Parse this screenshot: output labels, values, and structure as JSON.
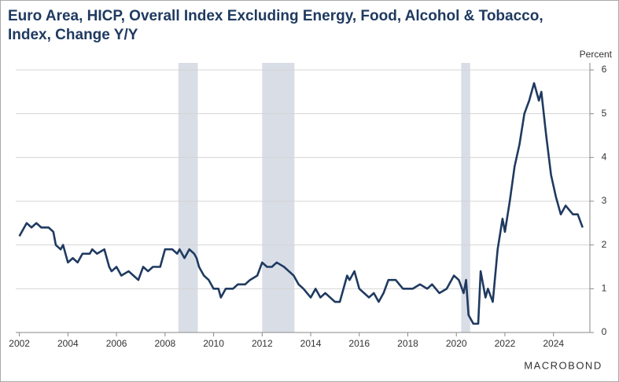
{
  "chart_data": {
    "type": "line",
    "title": [
      "Euro Area, HICP, Overall Index Excluding Energy, Food, Alcohol & Tobacco,",
      "Index, Change Y/Y"
    ],
    "y_axis_label": "Percent",
    "logo": "MACROBOND",
    "color": "#1f3a60",
    "shade_color": "#d9dde6",
    "grid": true,
    "y_axis_side": "right",
    "xlim": [
      2001.85,
      2025.5
    ],
    "xticks": [
      2002,
      2004,
      2006,
      2008,
      2010,
      2012,
      2014,
      2016,
      2018,
      2020,
      2022,
      2024
    ],
    "ylim": [
      0,
      6
    ],
    "yticks": [
      0,
      1,
      2,
      3,
      4,
      5,
      6
    ],
    "shaded_periods": [
      [
        2008.55,
        2009.35
      ],
      [
        2012.0,
        2013.33
      ],
      [
        2020.2,
        2020.57
      ]
    ],
    "x": [
      2002.0,
      2002.2,
      2002.3,
      2002.5,
      2002.7,
      2002.9,
      2003.2,
      2003.4,
      2003.5,
      2003.7,
      2003.8,
      2004.0,
      2004.2,
      2004.4,
      2004.6,
      2004.9,
      2005.0,
      2005.2,
      2005.5,
      2005.7,
      2005.8,
      2006.0,
      2006.2,
      2006.5,
      2006.7,
      2006.9,
      2007.1,
      2007.3,
      2007.5,
      2007.8,
      2008.0,
      2008.3,
      2008.5,
      2008.6,
      2008.8,
      2009.0,
      2009.2,
      2009.3,
      2009.4,
      2009.6,
      2009.8,
      2010.0,
      2010.2,
      2010.3,
      2010.5,
      2010.8,
      2011.0,
      2011.3,
      2011.5,
      2011.8,
      2012.0,
      2012.2,
      2012.4,
      2012.6,
      2012.9,
      2013.1,
      2013.3,
      2013.5,
      2013.7,
      2014.0,
      2014.2,
      2014.4,
      2014.6,
      2014.8,
      2015.0,
      2015.2,
      2015.5,
      2015.6,
      2015.8,
      2016.0,
      2016.2,
      2016.4,
      2016.6,
      2016.8,
      2017.0,
      2017.2,
      2017.5,
      2017.8,
      2018.0,
      2018.2,
      2018.5,
      2018.8,
      2019.0,
      2019.3,
      2019.6,
      2019.9,
      2020.1,
      2020.3,
      2020.4,
      2020.5,
      2020.7,
      2020.9,
      2021.0,
      2021.2,
      2021.3,
      2021.5,
      2021.7,
      2021.9,
      2022.0,
      2022.2,
      2022.4,
      2022.6,
      2022.8,
      2023.0,
      2023.2,
      2023.4,
      2023.5,
      2023.7,
      2023.9,
      2024.1,
      2024.3,
      2024.5,
      2024.8,
      2025.0,
      2025.2
    ],
    "values": [
      2.2,
      2.4,
      2.5,
      2.4,
      2.5,
      2.4,
      2.4,
      2.3,
      2.0,
      1.9,
      2.0,
      1.6,
      1.7,
      1.6,
      1.8,
      1.8,
      1.9,
      1.8,
      1.9,
      1.5,
      1.4,
      1.5,
      1.3,
      1.4,
      1.3,
      1.2,
      1.5,
      1.4,
      1.5,
      1.5,
      1.9,
      1.9,
      1.8,
      1.9,
      1.7,
      1.9,
      1.8,
      1.7,
      1.5,
      1.3,
      1.2,
      1.0,
      1.0,
      0.8,
      1.0,
      1.0,
      1.1,
      1.1,
      1.2,
      1.3,
      1.6,
      1.5,
      1.5,
      1.6,
      1.5,
      1.4,
      1.3,
      1.1,
      1.0,
      0.8,
      1.0,
      0.8,
      0.9,
      0.8,
      0.7,
      0.7,
      1.3,
      1.2,
      1.4,
      1.0,
      0.9,
      0.8,
      0.9,
      0.7,
      0.9,
      1.2,
      1.2,
      1.0,
      1.0,
      1.0,
      1.1,
      1.0,
      1.1,
      0.9,
      1.0,
      1.3,
      1.2,
      0.9,
      1.2,
      0.4,
      0.2,
      0.2,
      1.4,
      0.8,
      1.0,
      0.7,
      1.9,
      2.6,
      2.3,
      3.0,
      3.8,
      4.3,
      5.0,
      5.3,
      5.7,
      5.3,
      5.5,
      4.5,
      3.6,
      3.1,
      2.7,
      2.9,
      2.7,
      2.7,
      2.4
    ]
  }
}
